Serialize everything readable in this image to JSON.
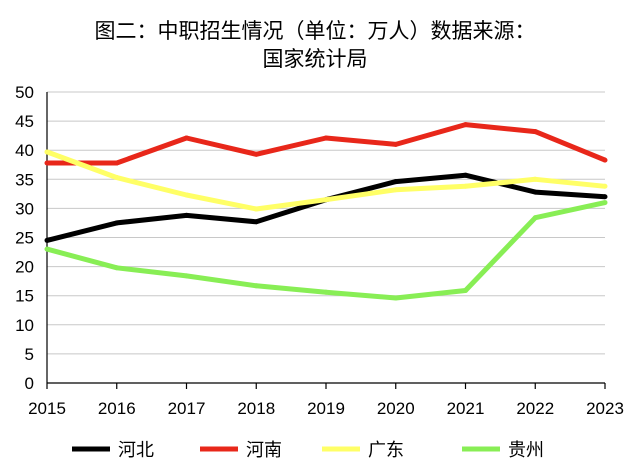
{
  "chart_data": {
    "type": "line",
    "title_line1": "图二：中职招生情况（单位：万人）数据来源：",
    "title_line2": "国家统计局",
    "title": "图二：中职招生情况（单位：万人）数据来源：国家统计局",
    "xlabel": "",
    "ylabel": "",
    "ylim": [
      0,
      50
    ],
    "y_ticks": [
      "0",
      "5",
      "10",
      "15",
      "20",
      "25",
      "30",
      "35",
      "40",
      "45",
      "50"
    ],
    "x": [
      "2015",
      "2016",
      "2017",
      "2018",
      "2019",
      "2020",
      "2021",
      "2022",
      "2023"
    ],
    "grid": true,
    "legend_position": "bottom",
    "series": [
      {
        "name": "河北",
        "color": "#000000",
        "values": [
          24.5,
          27.5,
          28.8,
          27.7,
          31.5,
          34.6,
          35.7,
          32.8,
          32.0
        ]
      },
      {
        "name": "河南",
        "color": "#e8271a",
        "values": [
          37.8,
          37.8,
          42.1,
          39.3,
          42.1,
          41.0,
          44.4,
          43.2,
          38.3
        ]
      },
      {
        "name": "广东",
        "color": "#ffff66",
        "values": [
          39.7,
          35.3,
          32.3,
          29.9,
          31.5,
          33.2,
          33.8,
          35.0,
          33.8
        ]
      },
      {
        "name": "贵州",
        "color": "#88ee55",
        "values": [
          23.0,
          19.8,
          18.4,
          16.7,
          15.6,
          14.6,
          15.9,
          28.4,
          31.0
        ]
      }
    ]
  }
}
